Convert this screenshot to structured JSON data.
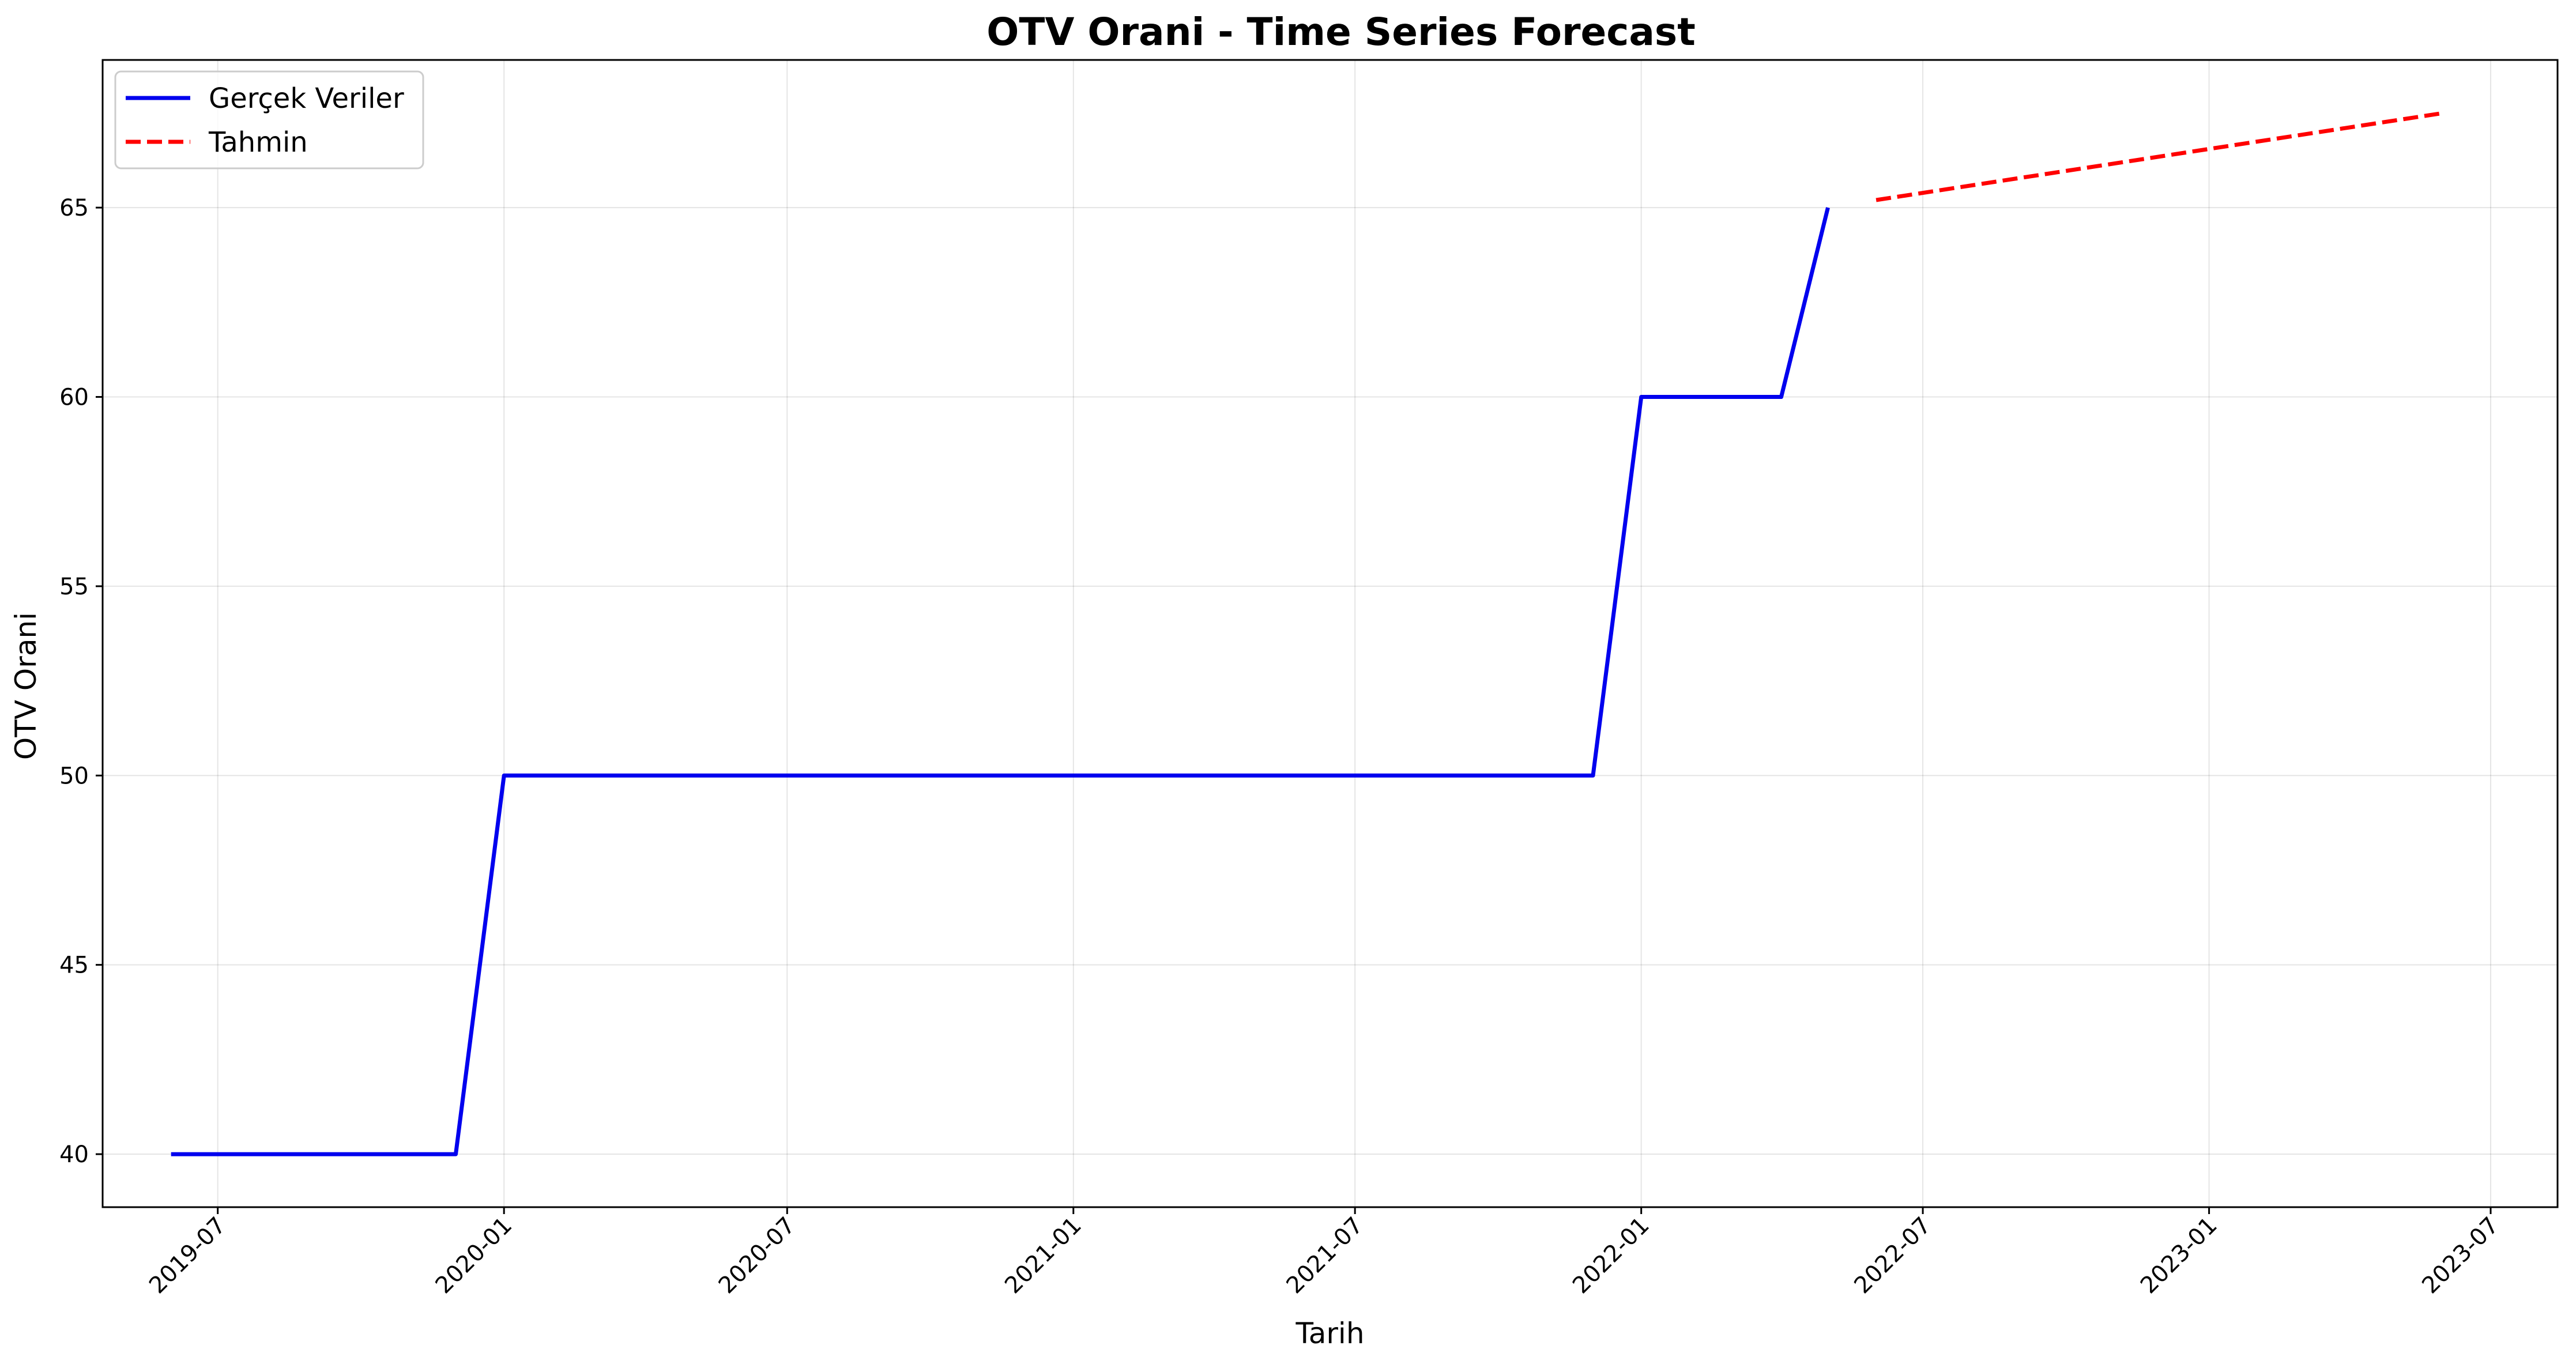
{
  "chart_data": {
    "type": "line",
    "title": "OTV Orani - Time Series Forecast",
    "xlabel": "Tarih",
    "ylabel": "OTV Orani",
    "x_type": "date",
    "xlim": [
      "2019-04-18",
      "2023-08-13"
    ],
    "ylim": [
      38.6,
      68.9
    ],
    "x_ticks": [
      "2019-07",
      "2020-01",
      "2020-07",
      "2021-01",
      "2021-07",
      "2022-01",
      "2022-07",
      "2023-01",
      "2023-07"
    ],
    "y_ticks": [
      40,
      45,
      50,
      55,
      60,
      65
    ],
    "grid": true,
    "legend_position": "top-left",
    "series": [
      {
        "name": "Gerçek Veriler",
        "color": "#0000ee",
        "style": "solid",
        "x": [
          "2019-06-01",
          "2019-07-01",
          "2019-08-01",
          "2019-09-01",
          "2019-10-01",
          "2019-11-01",
          "2019-12-01",
          "2020-01-01",
          "2020-02-01",
          "2020-03-01",
          "2020-04-01",
          "2020-05-01",
          "2020-06-01",
          "2020-07-01",
          "2020-08-01",
          "2020-09-01",
          "2020-10-01",
          "2020-11-01",
          "2020-12-01",
          "2021-01-01",
          "2021-02-01",
          "2021-03-01",
          "2021-04-01",
          "2021-05-01",
          "2021-06-01",
          "2021-07-01",
          "2021-08-01",
          "2021-09-01",
          "2021-10-01",
          "2021-11-01",
          "2021-12-01",
          "2022-01-01",
          "2022-02-01",
          "2022-03-01",
          "2022-04-01",
          "2022-05-01"
        ],
        "y": [
          40,
          40,
          40,
          40,
          40,
          40,
          40,
          50,
          50,
          50,
          50,
          50,
          50,
          50,
          50,
          50,
          50,
          50,
          50,
          50,
          50,
          50,
          50,
          50,
          50,
          50,
          50,
          50,
          50,
          50,
          50,
          60,
          60,
          60,
          60,
          65
        ]
      },
      {
        "name": "Tahmin",
        "color": "#ff0000",
        "style": "dashed",
        "x": [
          "2022-06-01",
          "2023-06-01"
        ],
        "y": [
          65.2,
          67.5
        ]
      }
    ]
  }
}
